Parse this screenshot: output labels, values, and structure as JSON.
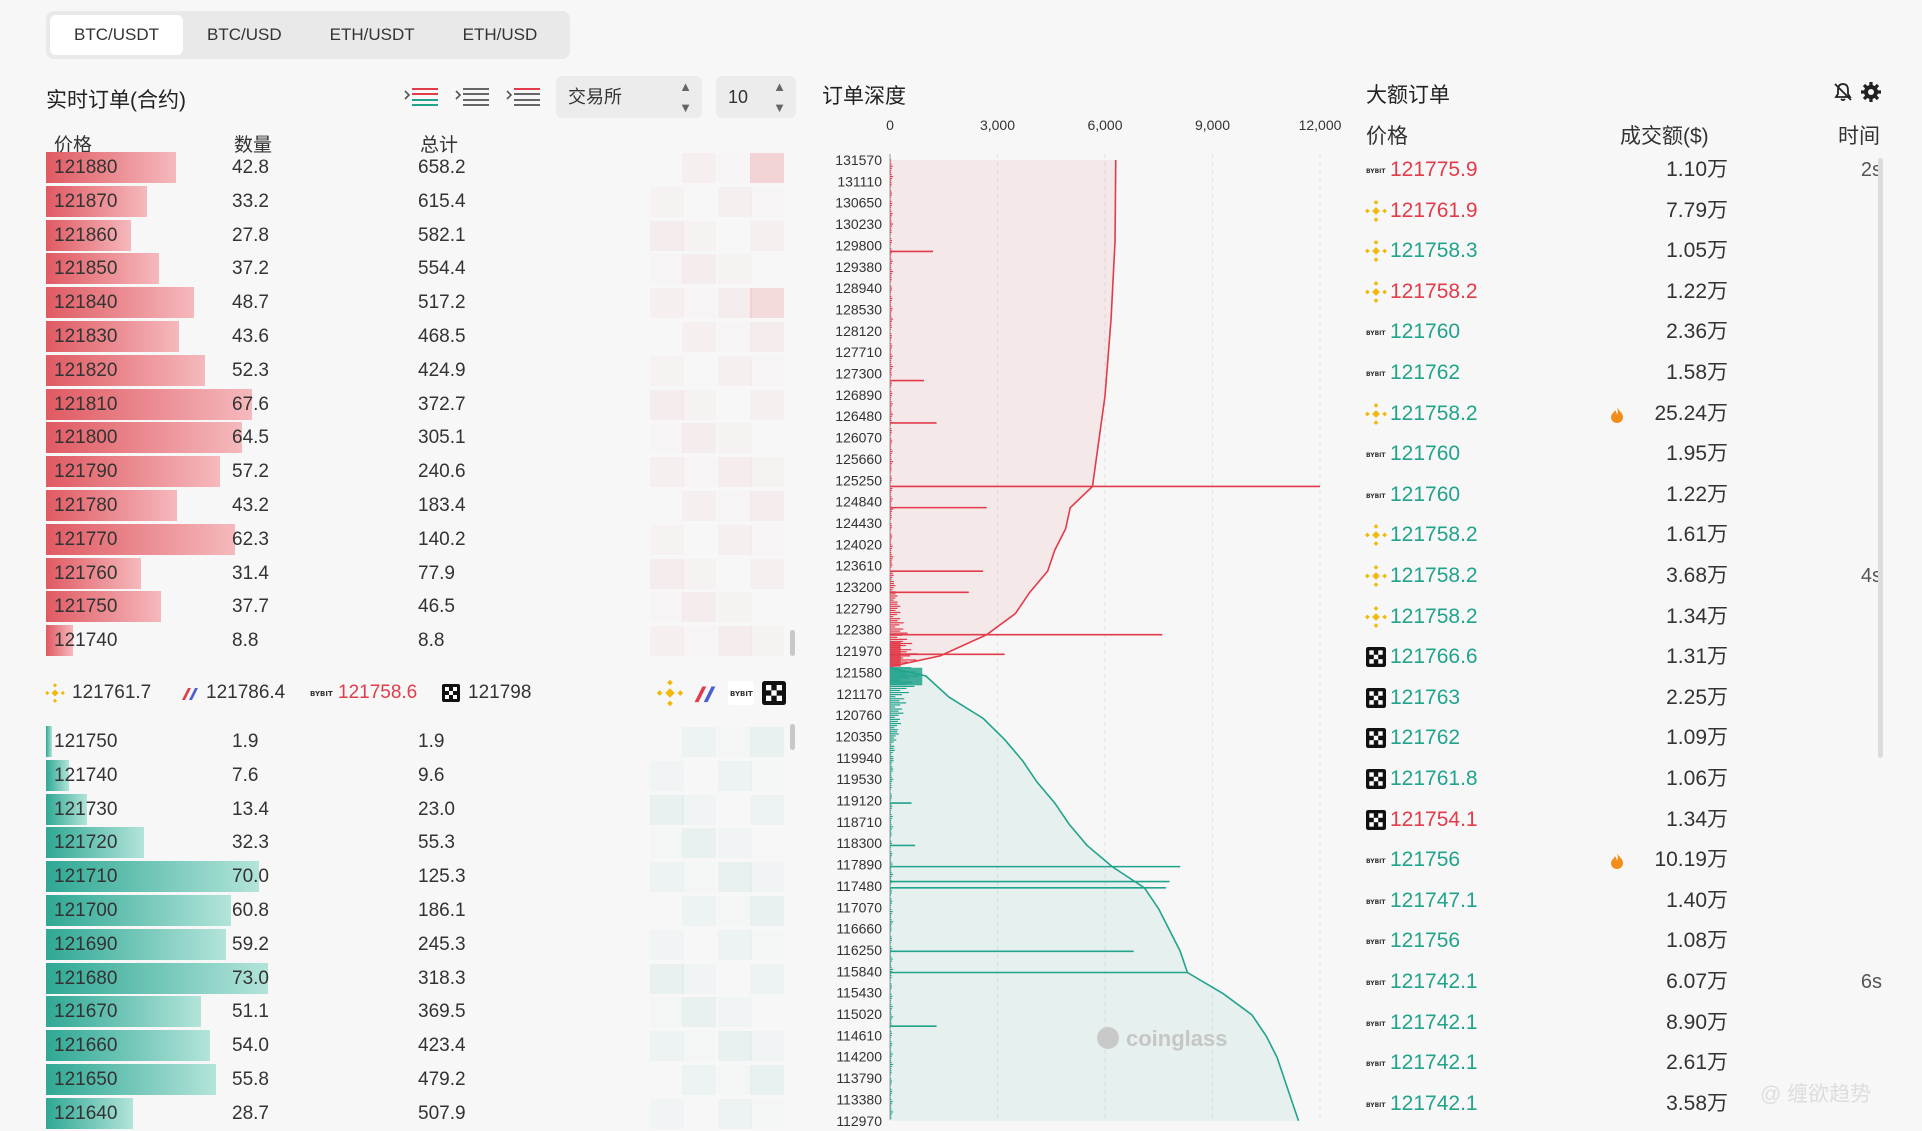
{
  "tabs": [
    "BTC/USDT",
    "BTC/USD",
    "ETH/USDT",
    "ETH/USD"
  ],
  "orderbook": {
    "title": "实时订单(合约)",
    "exchange_select": "交易所",
    "depth_select": "10",
    "headers": [
      "价格",
      "数量",
      "总计"
    ],
    "bar_scale_max": 73.0,
    "asks": [
      {
        "price": "121880",
        "qty": "42.8",
        "total": "658.2"
      },
      {
        "price": "121870",
        "qty": "33.2",
        "total": "615.4"
      },
      {
        "price": "121860",
        "qty": "27.8",
        "total": "582.1"
      },
      {
        "price": "121850",
        "qty": "37.2",
        "total": "554.4"
      },
      {
        "price": "121840",
        "qty": "48.7",
        "total": "517.2"
      },
      {
        "price": "121830",
        "qty": "43.6",
        "total": "468.5"
      },
      {
        "price": "121820",
        "qty": "52.3",
        "total": "424.9"
      },
      {
        "price": "121810",
        "qty": "67.6",
        "total": "372.7"
      },
      {
        "price": "121800",
        "qty": "64.5",
        "total": "305.1"
      },
      {
        "price": "121790",
        "qty": "57.2",
        "total": "240.6"
      },
      {
        "price": "121780",
        "qty": "43.2",
        "total": "183.4"
      },
      {
        "price": "121770",
        "qty": "62.3",
        "total": "140.2"
      },
      {
        "price": "121760",
        "qty": "31.4",
        "total": "77.9"
      },
      {
        "price": "121750",
        "qty": "37.7",
        "total": "46.5"
      },
      {
        "price": "121740",
        "qty": "8.8",
        "total": "8.8"
      }
    ],
    "exchange_prices": [
      {
        "exchange": "binance",
        "price": "121761.7"
      },
      {
        "exchange": "bitmex",
        "price": "121786.4"
      },
      {
        "exchange": "bybit",
        "price": "121758.6"
      },
      {
        "exchange": "okx",
        "price": "121798"
      }
    ],
    "bids": [
      {
        "price": "121750",
        "qty": "1.9",
        "total": "1.9"
      },
      {
        "price": "121740",
        "qty": "7.6",
        "total": "9.6"
      },
      {
        "price": "121730",
        "qty": "13.4",
        "total": "23.0"
      },
      {
        "price": "121720",
        "qty": "32.3",
        "total": "55.3"
      },
      {
        "price": "121710",
        "qty": "70.0",
        "total": "125.3"
      },
      {
        "price": "121700",
        "qty": "60.8",
        "total": "186.1"
      },
      {
        "price": "121690",
        "qty": "59.2",
        "total": "245.3"
      },
      {
        "price": "121680",
        "qty": "73.0",
        "total": "318.3"
      },
      {
        "price": "121670",
        "qty": "51.1",
        "total": "369.5"
      },
      {
        "price": "121660",
        "qty": "54.0",
        "total": "423.4"
      },
      {
        "price": "121650",
        "qty": "55.8",
        "total": "479.2"
      },
      {
        "price": "121640",
        "qty": "28.7",
        "total": "507.9"
      }
    ]
  },
  "depth": {
    "title": "订单深度",
    "watermark": "coinglass",
    "x_ticks": [
      "0",
      "3,000",
      "6,000",
      "9,000",
      "12,000"
    ],
    "x_max": 12000,
    "price_labels": [
      "131570",
      "131110",
      "130650",
      "130230",
      "129800",
      "129380",
      "128940",
      "128530",
      "128120",
      "127710",
      "127300",
      "126890",
      "126480",
      "126070",
      "125660",
      "125250",
      "124840",
      "124430",
      "124020",
      "123610",
      "123200",
      "122790",
      "122380",
      "121970",
      "121580",
      "121170",
      "120760",
      "120350",
      "119940",
      "119530",
      "119120",
      "118710",
      "118300",
      "117890",
      "117480",
      "117070",
      "116660",
      "116250",
      "115840",
      "115430",
      "115020",
      "114610",
      "114200",
      "113790",
      "113380",
      "112970"
    ],
    "ask_cum": [
      [
        131570,
        6300
      ],
      [
        130000,
        6280
      ],
      [
        128500,
        6170
      ],
      [
        127000,
        6000
      ],
      [
        126000,
        5800
      ],
      [
        125250,
        5650
      ],
      [
        124840,
        5030
      ],
      [
        124430,
        4900
      ],
      [
        124020,
        4600
      ],
      [
        123610,
        4400
      ],
      [
        123200,
        3900
      ],
      [
        122790,
        3500
      ],
      [
        122380,
        2700
      ],
      [
        121970,
        1400
      ],
      [
        121760,
        0
      ]
    ],
    "bid_cum": [
      [
        121740,
        0
      ],
      [
        121580,
        1000
      ],
      [
        121170,
        1650
      ],
      [
        120760,
        2600
      ],
      [
        120350,
        3200
      ],
      [
        119940,
        3700
      ],
      [
        119530,
        4100
      ],
      [
        119120,
        4600
      ],
      [
        118710,
        5000
      ],
      [
        118300,
        5500
      ],
      [
        117890,
        6200
      ],
      [
        117480,
        7100
      ],
      [
        117070,
        7500
      ],
      [
        116660,
        7800
      ],
      [
        116250,
        8100
      ],
      [
        115840,
        8300
      ],
      [
        115430,
        9300
      ],
      [
        115020,
        10100
      ],
      [
        114610,
        10500
      ],
      [
        114200,
        10800
      ],
      [
        113790,
        11000
      ],
      [
        113380,
        11200
      ],
      [
        112970,
        11400
      ]
    ],
    "ask_spikes": [
      [
        125250,
        12000
      ],
      [
        122380,
        7600
      ],
      [
        129800,
        1200
      ],
      [
        126480,
        1300
      ],
      [
        124840,
        2700
      ],
      [
        123610,
        2600
      ],
      [
        123200,
        2200
      ],
      [
        122000,
        3200
      ],
      [
        127300,
        950
      ]
    ],
    "bid_spikes": [
      [
        117890,
        8100
      ],
      [
        117600,
        7800
      ],
      [
        117480,
        7700
      ],
      [
        116250,
        6800
      ],
      [
        115840,
        8300
      ],
      [
        119120,
        600
      ],
      [
        114800,
        1300
      ],
      [
        118300,
        700
      ]
    ]
  },
  "large_orders": {
    "title": "大额订单",
    "headers": {
      "price": "价格",
      "amount": "成交额($)",
      "time": "时间"
    },
    "rows": [
      {
        "ex": "bybit",
        "price": "121775.9",
        "side": "sell",
        "amount": "1.10万",
        "time": "2s",
        "hot": false
      },
      {
        "ex": "binance",
        "price": "121761.9",
        "side": "sell",
        "amount": "7.79万",
        "time": "",
        "hot": false
      },
      {
        "ex": "binance",
        "price": "121758.3",
        "side": "buy",
        "amount": "1.05万",
        "time": "",
        "hot": false
      },
      {
        "ex": "binance",
        "price": "121758.2",
        "side": "sell",
        "amount": "1.22万",
        "time": "",
        "hot": false
      },
      {
        "ex": "bybit",
        "price": "121760",
        "side": "buy",
        "amount": "2.36万",
        "time": "",
        "hot": false
      },
      {
        "ex": "bybit",
        "price": "121762",
        "side": "buy",
        "amount": "1.58万",
        "time": "",
        "hot": false
      },
      {
        "ex": "binance",
        "price": "121758.2",
        "side": "buy",
        "amount": "25.24万",
        "time": "",
        "hot": true
      },
      {
        "ex": "bybit",
        "price": "121760",
        "side": "buy",
        "amount": "1.95万",
        "time": "",
        "hot": false
      },
      {
        "ex": "bybit",
        "price": "121760",
        "side": "buy",
        "amount": "1.22万",
        "time": "",
        "hot": false
      },
      {
        "ex": "binance",
        "price": "121758.2",
        "side": "buy",
        "amount": "1.61万",
        "time": "",
        "hot": false
      },
      {
        "ex": "binance",
        "price": "121758.2",
        "side": "buy",
        "amount": "3.68万",
        "time": "4s",
        "hot": false
      },
      {
        "ex": "binance",
        "price": "121758.2",
        "side": "buy",
        "amount": "1.34万",
        "time": "",
        "hot": false
      },
      {
        "ex": "okx",
        "price": "121766.6",
        "side": "buy",
        "amount": "1.31万",
        "time": "",
        "hot": false
      },
      {
        "ex": "okx",
        "price": "121763",
        "side": "buy",
        "amount": "2.25万",
        "time": "",
        "hot": false
      },
      {
        "ex": "okx",
        "price": "121762",
        "side": "buy",
        "amount": "1.09万",
        "time": "",
        "hot": false
      },
      {
        "ex": "okx",
        "price": "121761.8",
        "side": "buy",
        "amount": "1.06万",
        "time": "",
        "hot": false
      },
      {
        "ex": "okx",
        "price": "121754.1",
        "side": "sell",
        "amount": "1.34万",
        "time": "",
        "hot": false
      },
      {
        "ex": "bybit",
        "price": "121756",
        "side": "buy",
        "amount": "10.19万",
        "time": "",
        "hot": true
      },
      {
        "ex": "bybit",
        "price": "121747.1",
        "side": "buy",
        "amount": "1.40万",
        "time": "",
        "hot": false
      },
      {
        "ex": "bybit",
        "price": "121756",
        "side": "buy",
        "amount": "1.08万",
        "time": "",
        "hot": false
      },
      {
        "ex": "bybit",
        "price": "121742.1",
        "side": "buy",
        "amount": "6.07万",
        "time": "6s",
        "hot": false
      },
      {
        "ex": "bybit",
        "price": "121742.1",
        "side": "buy",
        "amount": "8.90万",
        "time": "",
        "hot": false
      },
      {
        "ex": "bybit",
        "price": "121742.1",
        "side": "buy",
        "amount": "2.61万",
        "time": "",
        "hot": false
      },
      {
        "ex": "bybit",
        "price": "121742.1",
        "side": "buy",
        "amount": "3.58万",
        "time": "",
        "hot": false
      }
    ]
  },
  "watermark_bottom": "@ 缠欲趋势",
  "colors": {
    "red": "#e23b4a",
    "green": "#21a38c",
    "ask_bar": "#e05a63",
    "bid_bar": "#2fa894"
  }
}
